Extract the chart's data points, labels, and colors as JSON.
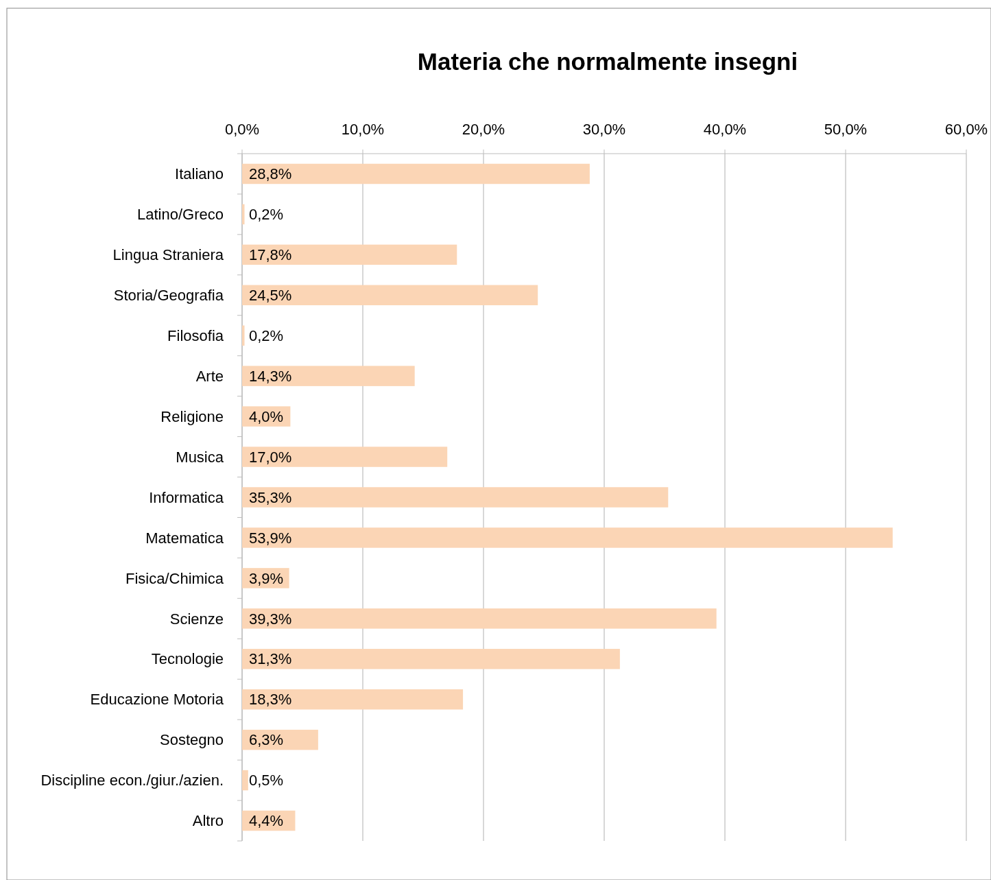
{
  "chart_data": {
    "type": "bar",
    "orientation": "horizontal",
    "title": "Materia che normalmente insegni",
    "categories": [
      "Italiano",
      "Latino/Greco",
      "Lingua Straniera",
      "Storia/Geografia",
      "Filosofia",
      "Arte",
      "Religione",
      "Musica",
      "Informatica",
      "Matematica",
      "Fisica/Chimica",
      "Scienze",
      "Tecnologie",
      "Educazione Motoria",
      "Sostegno",
      "Discipline econ./giur./azien.",
      "Altro"
    ],
    "values": [
      28.8,
      0.2,
      17.8,
      24.5,
      0.2,
      14.3,
      4.0,
      17.0,
      35.3,
      53.9,
      3.9,
      39.3,
      31.3,
      18.3,
      6.3,
      0.5,
      4.4
    ],
    "value_labels": [
      "28,8%",
      "0,2%",
      "17,8%",
      "24,5%",
      "0,2%",
      "14,3%",
      "4,0%",
      "17,0%",
      "35,3%",
      "53,9%",
      "3,9%",
      "39,3%",
      "31,3%",
      "18,3%",
      "6,3%",
      "0,5%",
      "4,4%"
    ],
    "color": "#fbd5b5",
    "xlim": [
      0,
      60
    ],
    "xticks": [
      {
        "value": 0,
        "label": "0,0%"
      },
      {
        "value": 10,
        "label": "10,0%"
      },
      {
        "value": 20,
        "label": "20,0%"
      },
      {
        "value": 30,
        "label": "30,0%"
      },
      {
        "value": 40,
        "label": "40,0%"
      },
      {
        "value": 50,
        "label": "50,0%"
      },
      {
        "value": 60,
        "label": "60,0%"
      }
    ],
    "grid": "x"
  }
}
